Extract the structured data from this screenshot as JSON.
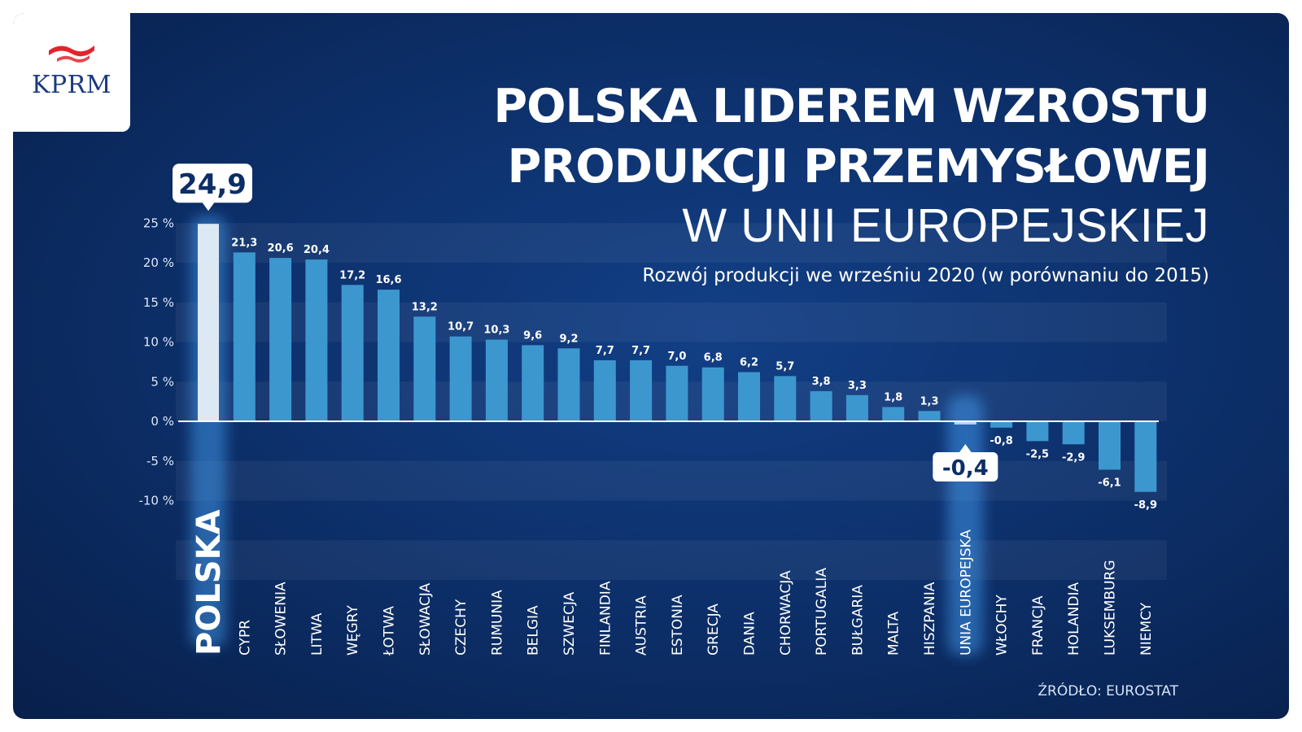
{
  "logo": {
    "text": "KPRM"
  },
  "header": {
    "title_line1": "POLSKA LIDEREM WZROSTU",
    "title_line2": "PRODUKCJI PRZEMYSŁOWEJ",
    "title_line3": "W UNII EUROPEJSKIEJ",
    "subtitle": "Rozwój produkcji we wrześniu 2020 (w porównaniu do 2015)"
  },
  "source": "ŹRÓDŁO: EUROSTAT",
  "colors": {
    "background": "#0c2e67",
    "bar": "#3d97cf",
    "highlight_bar": "#dce9f5",
    "eu_bar": "#b9d4ee"
  },
  "chart_data": {
    "type": "bar",
    "categories": [
      "POLSKA",
      "CYPR",
      "SŁOWENIA",
      "LITWA",
      "WĘGRY",
      "ŁOTWA",
      "SŁOWACJA",
      "CZECHY",
      "RUMUNIA",
      "BELGIA",
      "SZWECJA",
      "FINLANDIA",
      "AUSTRIA",
      "ESTONIA",
      "GRECJA",
      "DANIA",
      "CHORWACJA",
      "PORTUGALIA",
      "BUŁGARIA",
      "MALTA",
      "HISZPANIA",
      "UNIA EUROPEJSKA",
      "WŁOCHY",
      "FRANCJA",
      "HOLANDIA",
      "LUKSEMBURG",
      "NIEMCY"
    ],
    "values": [
      24.9,
      21.3,
      20.6,
      20.4,
      17.2,
      16.6,
      13.2,
      10.7,
      10.3,
      9.6,
      9.2,
      7.7,
      7.7,
      7.0,
      6.8,
      6.2,
      5.7,
      3.8,
      3.3,
      1.8,
      1.3,
      -0.4,
      -0.8,
      -2.5,
      -2.9,
      -6.1,
      -8.9
    ],
    "value_labels": [
      "24,9",
      "21,3",
      "20,6",
      "20,4",
      "17,2",
      "16,6",
      "13,2",
      "10,7",
      "10,3",
      "9,6",
      "9,2",
      "7,7",
      "7,7",
      "7,0",
      "6,8",
      "6,2",
      "5,7",
      "3,8",
      "3,3",
      "1,8",
      "1,3",
      "-0,4",
      "-0,8",
      "-2,5",
      "-2,9",
      "-6,1",
      "-8,9"
    ],
    "highlight": [
      "POLSKA",
      "UNIA EUROPEJSKA"
    ],
    "yticks": [
      25,
      20,
      15,
      10,
      5,
      0,
      -5,
      -10
    ],
    "ytick_labels": [
      "25 %",
      "20 %",
      "15 %",
      "10 %",
      "5 %",
      "0 %",
      "-5 %",
      "-10 %"
    ],
    "ylim": [
      -10,
      25
    ],
    "title": "POLSKA LIDEREM WZROSTU PRODUKCJI PRZEMYSŁOWEJ W UNII EUROPEJSKIEJ",
    "subtitle": "Rozwój produkcji we wrześniu 2020 (w porównaniu do 2015)",
    "xlabel": "",
    "ylabel": "",
    "grid": "horizontal bands",
    "legend": "none"
  }
}
